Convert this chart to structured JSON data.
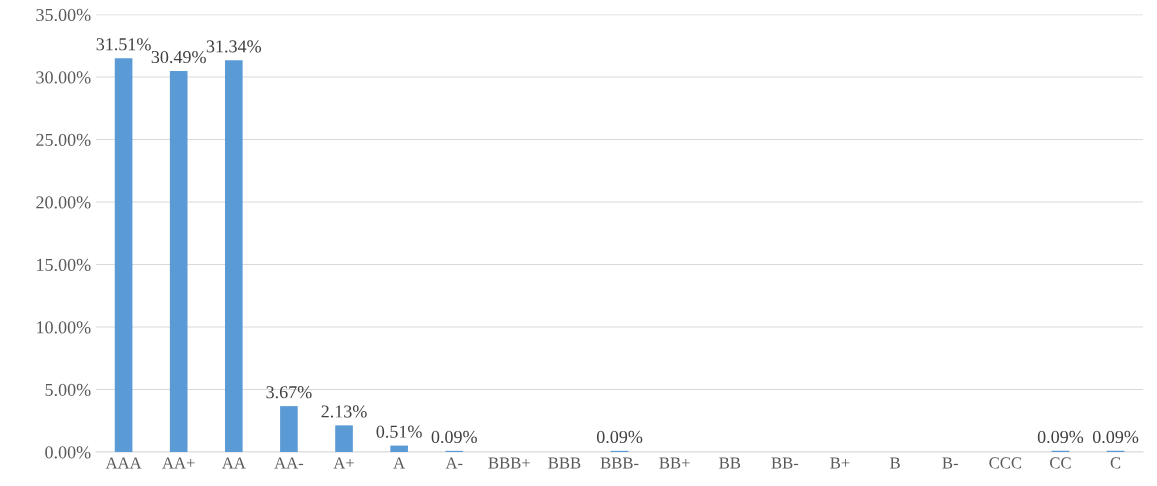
{
  "chart_data": {
    "type": "bar",
    "categories": [
      "AAA",
      "AA+",
      "AA",
      "AA-",
      "A+",
      "A",
      "A-",
      "BBB+",
      "BBB",
      "BBB-",
      "BB+",
      "BB",
      "BB-",
      "B+",
      "B",
      "B-",
      "CCC",
      "CC",
      "C"
    ],
    "values": [
      31.51,
      30.49,
      31.34,
      3.67,
      2.13,
      0.51,
      0.09,
      0,
      0,
      0.09,
      0,
      0,
      0,
      0,
      0,
      0,
      0,
      0.09,
      0.09
    ],
    "value_labels": [
      "31.51%",
      "30.49%",
      "31.34%",
      "3.67%",
      "2.13%",
      "0.51%",
      "0.09%",
      null,
      null,
      "0.09%",
      null,
      null,
      null,
      null,
      null,
      null,
      null,
      "0.09%",
      "0.09%"
    ],
    "color": "#5b9bd5",
    "ylim": [
      0,
      35
    ],
    "yticks": [
      {
        "value": 0,
        "label": "0.00%"
      },
      {
        "value": 5,
        "label": "5.00%"
      },
      {
        "value": 10,
        "label": "10.00%"
      },
      {
        "value": 15,
        "label": "15.00%"
      },
      {
        "value": 20,
        "label": "20.00%"
      },
      {
        "value": 25,
        "label": "25.00%"
      },
      {
        "value": 30,
        "label": "30.00%"
      },
      {
        "value": 35,
        "label": "35.00%"
      }
    ],
    "grid": "y",
    "legend": false
  }
}
